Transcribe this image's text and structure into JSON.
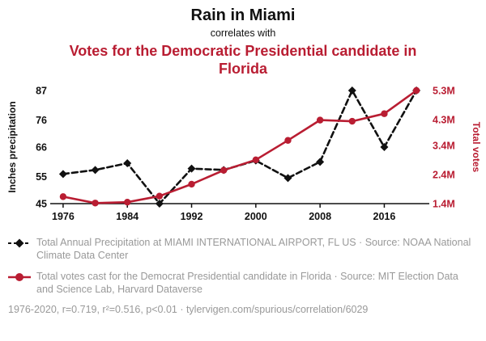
{
  "colors": {
    "red": "#b91d32",
    "gray": "#999999",
    "black": "#111111"
  },
  "header": {
    "title": "Rain in Miami",
    "subtitle": "correlates with",
    "red_title": "Votes for the Democratic Presidential candidate in Florida"
  },
  "chart_data": {
    "type": "line",
    "x": [
      1976,
      1980,
      1984,
      1988,
      1992,
      1996,
      2000,
      2004,
      2008,
      2012,
      2016,
      2020
    ],
    "x_ticks": [
      1976,
      1984,
      1992,
      2000,
      2008,
      2016
    ],
    "left_axis": {
      "label": "Inches precipitation",
      "ticks": [
        45,
        55,
        66,
        76,
        87
      ],
      "range": [
        45,
        87
      ]
    },
    "right_axis": {
      "label": "Total votes",
      "ticks": [
        "1.4M",
        "2.4M",
        "3.4M",
        "4.3M",
        "5.3M"
      ],
      "tick_values": [
        1.4,
        2.4,
        3.4,
        4.3,
        5.3
      ],
      "range": [
        1.4,
        5.3
      ]
    },
    "series": [
      {
        "name": "Total Annual Precipitation at MIAMI INTERNATIONAL AIRPORT, FL US",
        "axis": "left",
        "color": "#111111",
        "style": "dashed-diamond",
        "values": [
          56,
          57.5,
          60,
          45,
          58,
          57.5,
          61,
          54.5,
          60.5,
          87,
          66,
          87
        ]
      },
      {
        "name": "Total votes cast for the Democrat Presidential candidate in Florida",
        "axis": "right",
        "color": "#b91d32",
        "style": "solid-circle",
        "values": [
          1.64,
          1.42,
          1.45,
          1.66,
          2.07,
          2.55,
          2.91,
          3.58,
          4.28,
          4.24,
          4.5,
          5.3
        ]
      }
    ],
    "grid": false,
    "legend_position": "below"
  },
  "legend": [
    {
      "marker": "black-diamond-dashed-line",
      "text": "Total Annual Precipitation at MIAMI INTERNATIONAL AIRPORT, FL US · Source: NOAA National Climate Data Center"
    },
    {
      "marker": "red-circle-solid-line",
      "text": "Total votes cast for the Democrat Presidential candidate in Florida · Source: MIT Election Data and Science Lab, Harvard Dataverse"
    }
  ],
  "footer": "1976-2020, r=0.719, r²=0.516, p<0.01 · tylervigen.com/spurious/correlation/6029"
}
